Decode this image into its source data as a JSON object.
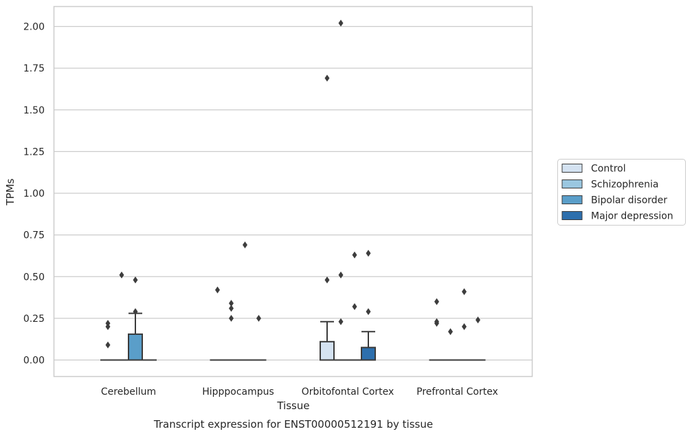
{
  "chart_data": {
    "type": "box",
    "caption": "Transcript expression for ENST00000512191 by tissue",
    "xlabel": "Tissue",
    "ylabel": "TPMs",
    "ylim": [
      -0.1,
      2.12
    ],
    "yticks": [
      "0.00",
      "0.25",
      "0.50",
      "0.75",
      "1.00",
      "1.25",
      "1.50",
      "1.75",
      "2.00"
    ],
    "grid": true,
    "legend_position": "right",
    "categories": [
      "Cerebellum",
      "Hipppocampus",
      "Orbitofontal Cortex",
      "Prefrontal Cortex"
    ],
    "series": [
      {
        "name": "Control",
        "color": "#d4e2f1",
        "boxes": [
          {
            "q1": 0,
            "median": 0,
            "q3": 0,
            "whisker_low": 0,
            "whisker_high": 0,
            "outliers": [
              0.09,
              0.2,
              0.22
            ]
          },
          {
            "q1": 0,
            "median": 0,
            "q3": 0,
            "whisker_low": 0,
            "whisker_high": 0,
            "outliers": [
              0.42
            ]
          },
          {
            "q1": 0,
            "median": 0,
            "q3": 0.11,
            "whisker_low": 0,
            "whisker_high": 0.23,
            "outliers": [
              0.48,
              1.69
            ]
          },
          {
            "q1": 0,
            "median": 0,
            "q3": 0,
            "whisker_low": 0,
            "whisker_high": 0,
            "outliers": [
              0.22,
              0.23,
              0.35
            ]
          }
        ]
      },
      {
        "name": "Schizophrenia",
        "color": "#9ac7e0",
        "boxes": [
          {
            "q1": 0,
            "median": 0,
            "q3": 0,
            "whisker_low": 0,
            "whisker_high": 0,
            "outliers": [
              0.51
            ]
          },
          {
            "q1": 0,
            "median": 0,
            "q3": 0,
            "whisker_low": 0,
            "whisker_high": 0,
            "outliers": [
              0.25,
              0.31,
              0.34
            ]
          },
          {
            "q1": 0,
            "median": 0,
            "q3": 0,
            "whisker_low": 0,
            "whisker_high": 0,
            "outliers": [
              0.23,
              0.51,
              2.02
            ]
          },
          {
            "q1": 0,
            "median": 0,
            "q3": 0,
            "whisker_low": 0,
            "whisker_high": 0,
            "outliers": [
              0.17
            ]
          }
        ]
      },
      {
        "name": "Bipolar disorder",
        "color": "#5a9ec9",
        "boxes": [
          {
            "q1": 0,
            "median": 0,
            "q3": 0.155,
            "whisker_low": 0,
            "whisker_high": 0.28,
            "outliers": [
              0.29,
              0.48
            ]
          },
          {
            "q1": 0,
            "median": 0,
            "q3": 0,
            "whisker_low": 0,
            "whisker_high": 0,
            "outliers": [
              0.69
            ]
          },
          {
            "q1": 0,
            "median": 0,
            "q3": 0,
            "whisker_low": 0,
            "whisker_high": 0,
            "outliers": [
              0.32,
              0.63
            ]
          },
          {
            "q1": 0,
            "median": 0,
            "q3": 0,
            "whisker_low": 0,
            "whisker_high": 0,
            "outliers": [
              0.2,
              0.41
            ]
          }
        ]
      },
      {
        "name": "Major depression",
        "color": "#2d6fad",
        "boxes": [
          {
            "q1": 0,
            "median": 0,
            "q3": 0,
            "whisker_low": 0,
            "whisker_high": 0,
            "outliers": []
          },
          {
            "q1": 0,
            "median": 0,
            "q3": 0,
            "whisker_low": 0,
            "whisker_high": 0,
            "outliers": [
              0.25
            ]
          },
          {
            "q1": 0,
            "median": 0,
            "q3": 0.075,
            "whisker_low": 0,
            "whisker_high": 0.17,
            "outliers": [
              0.29,
              0.64
            ]
          },
          {
            "q1": 0,
            "median": 0,
            "q3": 0,
            "whisker_low": 0,
            "whisker_high": 0,
            "outliers": [
              0.24
            ]
          }
        ]
      }
    ]
  }
}
